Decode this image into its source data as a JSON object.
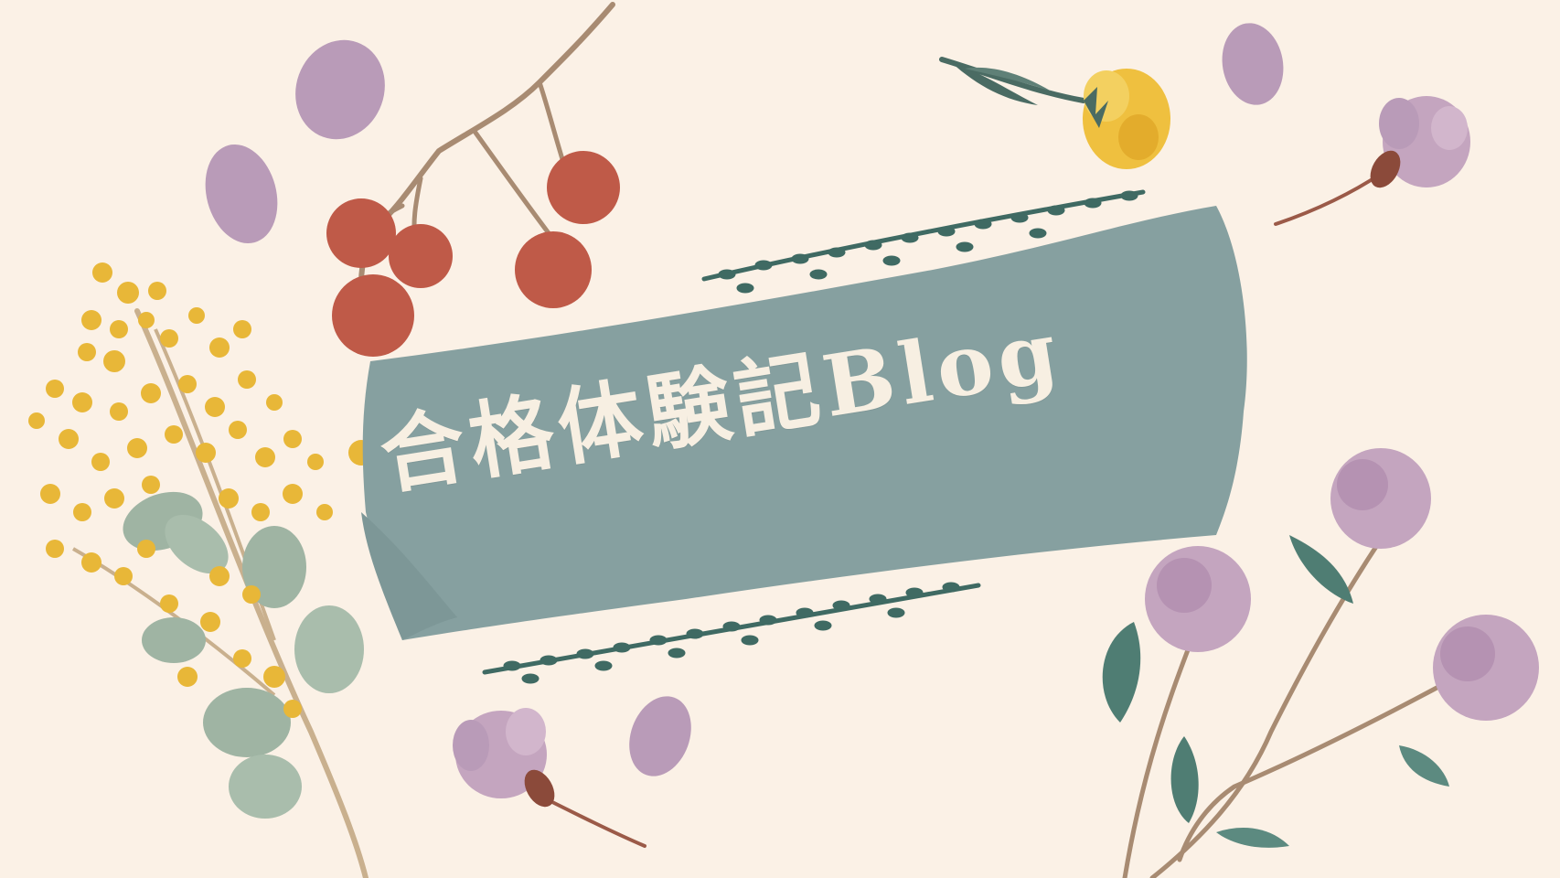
{
  "banner": {
    "title": "合格体験記Blog"
  },
  "colors": {
    "background": "#fbf1e6",
    "banner_fill": "#86a0a0",
    "vine": "#3f6a63",
    "berry": "#bf5a48",
    "mimosa": "#e8b738",
    "lavender_petal": "#b99bb8",
    "leaf_green": "#9fb4a3",
    "yellow_flower": "#efc03f",
    "stem": "#9b7b63",
    "title_text": "#f7efe2"
  },
  "decorations": [
    "red-berry-branch",
    "yellow-mimosa-sprig",
    "lavender-petals",
    "tulip-flowers",
    "yellow-buttercup",
    "thistle-flowers",
    "vine-garlands"
  ]
}
